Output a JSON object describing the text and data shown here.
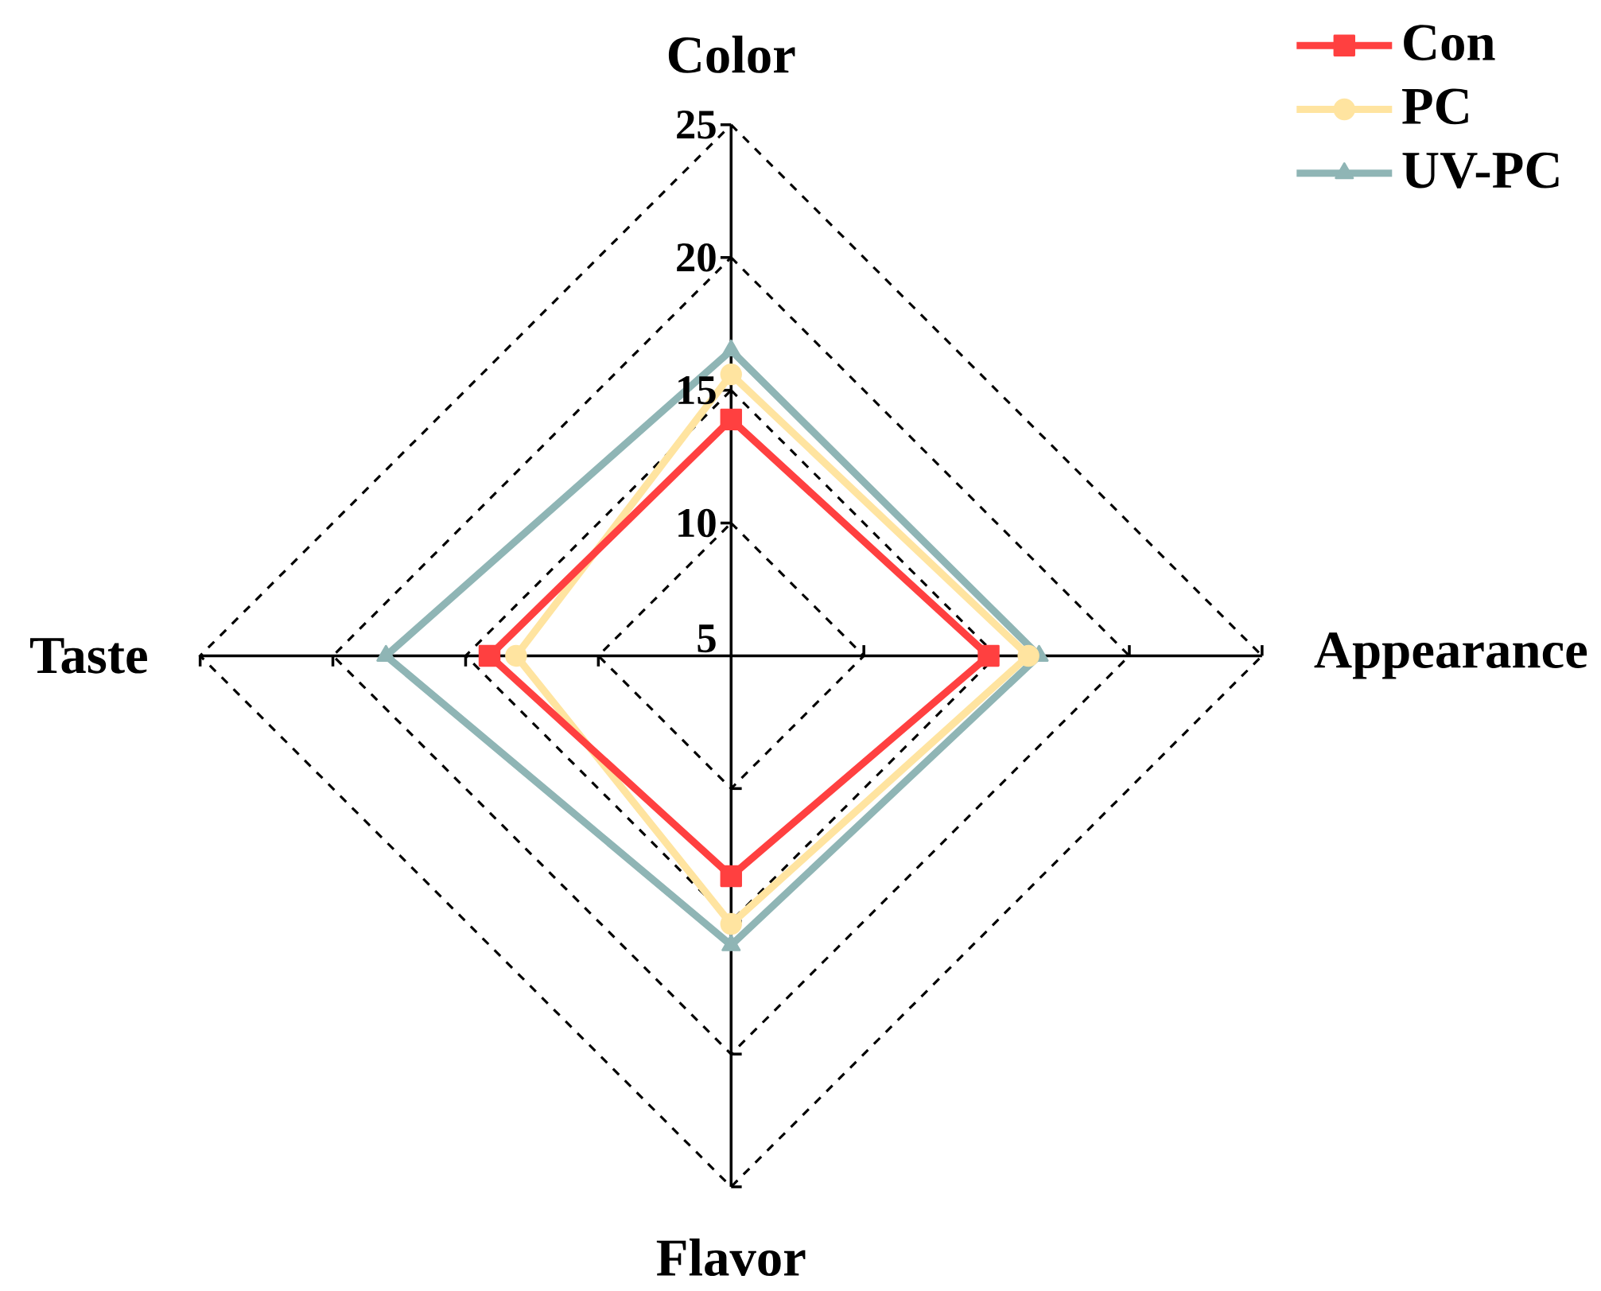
{
  "chart_data": {
    "type": "radar",
    "categories": [
      "Color",
      "Appearance",
      "Flavor",
      "Taste"
    ],
    "ylim": [
      5,
      25
    ],
    "yticks": [
      5,
      10,
      15,
      20,
      25
    ],
    "grid": true,
    "legend": "top right",
    "line_style": "dashed",
    "series": [
      {
        "name": "Con",
        "color": "#ff4040",
        "marker": "square",
        "values": [
          13.9,
          14.7,
          13.3,
          14.1
        ]
      },
      {
        "name": "PC",
        "color": "#ffe4a0",
        "marker": "circle",
        "values": [
          15.6,
          16.2,
          15.1,
          13.1
        ]
      },
      {
        "name": "UV-PC",
        "color": "#8fb5b5",
        "marker": "triangle",
        "values": [
          16.5,
          16.6,
          15.9,
          18.0
        ]
      }
    ]
  }
}
